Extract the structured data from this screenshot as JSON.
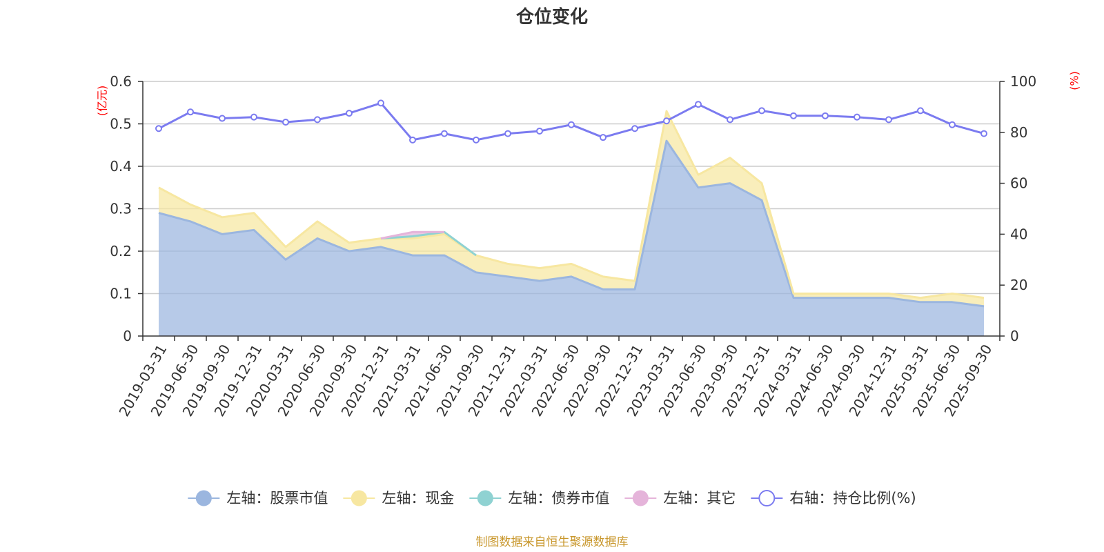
{
  "chart_data": {
    "type": "area",
    "title": "仓位变化",
    "source_note": "制图数据来自恒生聚源数据库",
    "left_axis": {
      "unit": "(亿元)",
      "ylim": [
        0,
        0.6
      ],
      "ticks": [
        "0",
        "0.1",
        "0.2",
        "0.3",
        "0.4",
        "0.5",
        "0.6"
      ]
    },
    "right_axis": {
      "unit": "(%)",
      "ylim": [
        0,
        100
      ],
      "ticks": [
        "0",
        "20",
        "40",
        "60",
        "80",
        "100"
      ]
    },
    "grid": true,
    "legend_position": "bottom",
    "categories": [
      "2019-03-31",
      "2019-06-30",
      "2019-09-30",
      "2019-12-31",
      "2020-03-31",
      "2020-06-30",
      "2020-09-30",
      "2020-12-31",
      "2021-03-31",
      "2021-06-30",
      "2021-09-30",
      "2021-12-31",
      "2022-03-31",
      "2022-06-30",
      "2022-09-30",
      "2022-12-31",
      "2023-03-31",
      "2023-06-30",
      "2023-09-30",
      "2023-12-31",
      "2024-03-31",
      "2024-06-30",
      "2024-09-30",
      "2024-12-31",
      "2025-03-31",
      "2025-06-30",
      "2025-09-30"
    ],
    "series": [
      {
        "name": "左轴：股票市值",
        "axis": "left",
        "stacked": true,
        "color": "#9bb6df",
        "values": [
          0.29,
          0.27,
          0.24,
          0.25,
          0.18,
          0.23,
          0.2,
          0.21,
          0.19,
          0.19,
          0.15,
          0.14,
          0.13,
          0.14,
          0.11,
          0.11,
          0.46,
          0.35,
          0.36,
          0.32,
          0.09,
          0.09,
          0.09,
          0.09,
          0.08,
          0.08,
          0.07
        ]
      },
      {
        "name": "左轴：现金",
        "axis": "left",
        "stacked": true,
        "color": "#f7e7a1",
        "values": [
          0.06,
          0.04,
          0.04,
          0.04,
          0.03,
          0.04,
          0.02,
          0.02,
          0.04,
          0.05,
          0.04,
          0.03,
          0.03,
          0.03,
          0.03,
          0.02,
          0.07,
          0.03,
          0.06,
          0.04,
          0.01,
          0.01,
          0.01,
          0.01,
          0.01,
          0.02,
          0.02
        ]
      },
      {
        "name": "左轴：债券市值",
        "axis": "left",
        "stacked": true,
        "color": "#8fd2d2",
        "values": [
          0,
          0,
          0,
          0,
          0,
          0,
          0,
          0,
          0.005,
          0.005,
          0,
          0,
          0,
          0,
          0,
          0,
          0,
          0,
          0,
          0,
          0,
          0,
          0,
          0,
          0,
          0,
          0
        ]
      },
      {
        "name": "左轴：其它",
        "axis": "left",
        "stacked": true,
        "color": "#e5b4da",
        "values": [
          0,
          0,
          0,
          0,
          0,
          0,
          0,
          0,
          0.01,
          0,
          0,
          0,
          0,
          0,
          0,
          0,
          0,
          0,
          0,
          0,
          0,
          0,
          0,
          0,
          0,
          0,
          0
        ]
      },
      {
        "name": "右轴：持仓比例(%)",
        "axis": "right",
        "stacked": false,
        "color": "#7b7bf0",
        "values": [
          81.5,
          88,
          85.5,
          86,
          84,
          85,
          87.5,
          91.5,
          77,
          79.5,
          77,
          79.5,
          80.5,
          83,
          78,
          81.5,
          84.5,
          91,
          85,
          88.5,
          86.5,
          86.5,
          86,
          85,
          88.5,
          83,
          79.5
        ]
      }
    ]
  }
}
